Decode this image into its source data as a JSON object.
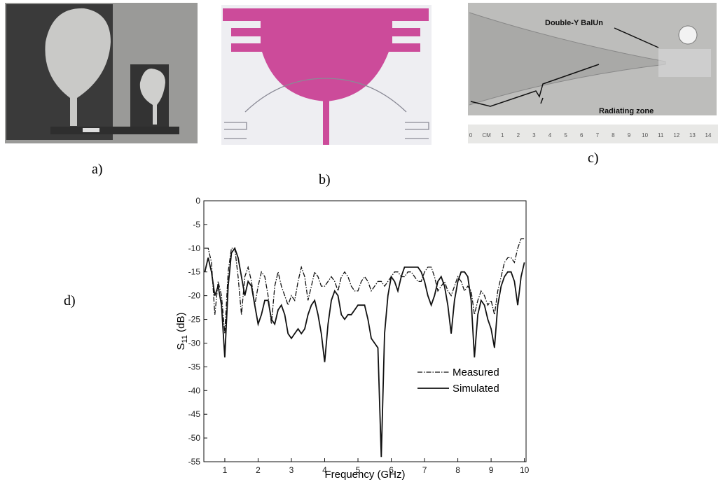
{
  "panel_labels": [
    "a)",
    "b)",
    "c)",
    "d)"
  ],
  "annotations": {
    "balun": "Double-Y BalUn",
    "radiating": "Radiating zone"
  },
  "ruler": [
    "0",
    "CM",
    "1",
    "2",
    "3",
    "4",
    "5",
    "6",
    "7",
    "8",
    "9",
    "10",
    "11",
    "12",
    "13",
    "14"
  ],
  "chart_data": {
    "type": "line",
    "x_label": "Frequency (GHz)",
    "y_label": [
      "S",
      "11",
      " (dB)"
    ],
    "x": [
      0.4,
      0.5,
      0.6,
      0.7,
      0.8,
      0.9,
      1.0,
      1.1,
      1.2,
      1.3,
      1.4,
      1.5,
      1.6,
      1.7,
      1.8,
      1.9,
      2.0,
      2.1,
      2.2,
      2.3,
      2.4,
      2.5,
      2.6,
      2.7,
      2.8,
      2.9,
      3.0,
      3.1,
      3.2,
      3.3,
      3.4,
      3.5,
      3.6,
      3.7,
      3.8,
      3.9,
      4.0,
      4.1,
      4.2,
      4.3,
      4.4,
      4.5,
      4.6,
      4.7,
      4.8,
      4.9,
      5.0,
      5.1,
      5.2,
      5.3,
      5.4,
      5.5,
      5.6,
      5.7,
      5.8,
      5.9,
      6.0,
      6.1,
      6.2,
      6.3,
      6.4,
      6.5,
      6.6,
      6.7,
      6.8,
      6.9,
      7.0,
      7.1,
      7.2,
      7.3,
      7.4,
      7.5,
      7.6,
      7.7,
      7.8,
      7.9,
      8.0,
      8.1,
      8.2,
      8.3,
      8.4,
      8.5,
      8.6,
      8.7,
      8.8,
      8.9,
      9.0,
      9.1,
      9.2,
      9.3,
      9.4,
      9.5,
      9.6,
      9.7,
      9.8,
      9.9,
      10.0
    ],
    "series": [
      {
        "name": "Measured",
        "color": "#111111",
        "style": "dash-dot",
        "values": [
          -10,
          -10,
          -13,
          -24,
          -17,
          -20,
          -28,
          -15,
          -10,
          -10,
          -16,
          -24,
          -16,
          -14,
          -17,
          -22,
          -18,
          -15,
          -16,
          -20,
          -26,
          -18,
          -15,
          -18,
          -20,
          -22,
          -20,
          -21,
          -17,
          -14,
          -16,
          -21,
          -18,
          -15,
          -16,
          -18,
          -18,
          -17,
          -16,
          -17,
          -19,
          -16,
          -15,
          -16,
          -18,
          -19,
          -19,
          -17,
          -16,
          -17,
          -19,
          -18,
          -17,
          -17,
          -18,
          -17,
          -16,
          -15,
          -15,
          -16,
          -16,
          -15,
          -15,
          -16,
          -17,
          -17,
          -15,
          -14,
          -14,
          -16,
          -19,
          -18,
          -17,
          -19,
          -20,
          -18,
          -16,
          -17,
          -19,
          -18,
          -19,
          -24,
          -21,
          -19,
          -20,
          -22,
          -21,
          -24,
          -19,
          -16,
          -13,
          -12,
          -12,
          -13,
          -10,
          -8,
          -8
        ]
      },
      {
        "name": "Simulated",
        "color": "#111111",
        "style": "solid",
        "values": [
          -15,
          -12,
          -15,
          -20,
          -18,
          -22,
          -33,
          -18,
          -11,
          -10,
          -12,
          -16,
          -20,
          -17,
          -18,
          -22,
          -26,
          -24,
          -21,
          -21,
          -25,
          -26,
          -23,
          -22,
          -24,
          -28,
          -29,
          -28,
          -27,
          -28,
          -27,
          -24,
          -22,
          -21,
          -24,
          -28,
          -34,
          -26,
          -21,
          -19,
          -20,
          -24,
          -25,
          -24,
          -24,
          -23,
          -22,
          -22,
          -22,
          -25,
          -29,
          -30,
          -31,
          -54,
          -28,
          -20,
          -16,
          -17,
          -19,
          -16,
          -14,
          -14,
          -14,
          -14,
          -14,
          -15,
          -17,
          -20,
          -22,
          -20,
          -17,
          -16,
          -18,
          -22,
          -28,
          -21,
          -17,
          -15,
          -15,
          -16,
          -21,
          -33,
          -24,
          -21,
          -22,
          -25,
          -27,
          -31,
          -22,
          -18,
          -16,
          -15,
          -15,
          -17,
          -22,
          -16,
          -13
        ]
      }
    ],
    "xlim": [
      0.37,
      10.05
    ],
    "ylim": [
      -55,
      0
    ],
    "xticks": [
      1,
      2,
      3,
      4,
      5,
      6,
      7,
      8,
      9,
      10
    ],
    "yticks": [
      0,
      -5,
      -10,
      -15,
      -20,
      -25,
      -30,
      -35,
      -40,
      -45,
      -50,
      -55
    ],
    "legend": "lower right"
  }
}
